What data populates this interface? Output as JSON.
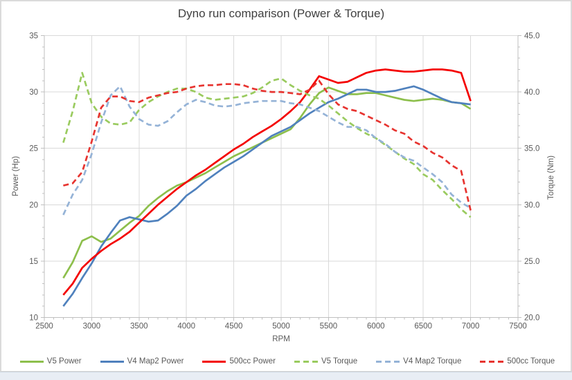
{
  "frame": {
    "background": "#ffffff",
    "border_color": "#dadada",
    "bottom_strip_color": "#e8edf4"
  },
  "title": {
    "text": "Dyno run comparison (Power & Torque)",
    "color": "#404040"
  },
  "axes": {
    "gridline_color": "#d9d9d9",
    "axis_line_color": "#bfbfbf",
    "tick_color": "#bfbfbf",
    "label_color": "#595959",
    "x": {
      "title": "RPM",
      "tick_labels": [
        "2500",
        "3000",
        "3500",
        "4000",
        "4500",
        "5000",
        "5500",
        "6000",
        "6500",
        "7000",
        "7500"
      ],
      "minor_step": 100
    },
    "y_left": {
      "title": "Power (Hp)",
      "tick_labels": [
        "10",
        "15",
        "20",
        "25",
        "30",
        "35"
      ],
      "minor_step": 1
    },
    "y_right": {
      "title": "Torque (Nm)",
      "tick_labels": [
        "20.0",
        "25.0",
        "30.0",
        "35.0",
        "40.0",
        "45.0"
      ],
      "minor_step": 1
    }
  },
  "chart_data": {
    "type": "line",
    "title": "Dyno run comparison (Power & Torque)",
    "xlabel": "RPM",
    "ylabel_left": "Power (Hp)",
    "ylabel_right": "Torque (Nm)",
    "x_range": [
      2500,
      7500
    ],
    "y_left_range": [
      10,
      35
    ],
    "y_right_range": [
      20.0,
      45.0
    ],
    "grid": true,
    "legend_position": "bottom",
    "x": [
      2700,
      2800,
      2900,
      3000,
      3100,
      3200,
      3300,
      3400,
      3500,
      3600,
      3700,
      3800,
      3900,
      4000,
      4100,
      4200,
      4300,
      4400,
      4500,
      4600,
      4700,
      4800,
      4900,
      5000,
      5100,
      5200,
      5300,
      5400,
      5500,
      5600,
      5700,
      5800,
      5900,
      6000,
      6100,
      6200,
      6300,
      6400,
      6500,
      6600,
      6700,
      6800,
      6900,
      7000
    ],
    "series": [
      {
        "name": "V5 Power",
        "axis": "left",
        "style": "solid",
        "color": "#8dbf4c",
        "values": [
          13.5,
          14.9,
          16.8,
          17.2,
          16.7,
          17.0,
          17.7,
          18.4,
          19.0,
          19.9,
          20.6,
          21.2,
          21.7,
          22.0,
          22.4,
          22.8,
          23.3,
          23.8,
          24.3,
          24.7,
          25.1,
          25.5,
          25.9,
          26.3,
          26.7,
          27.7,
          28.9,
          29.9,
          30.4,
          30.1,
          29.8,
          29.8,
          29.9,
          29.9,
          29.7,
          29.5,
          29.3,
          29.2,
          29.3,
          29.4,
          29.3,
          29.1,
          29.0,
          28.5
        ]
      },
      {
        "name": "V4 Map2 Power",
        "axis": "left",
        "style": "solid",
        "color": "#4f81bd",
        "values": [
          11.0,
          12.1,
          13.5,
          14.8,
          16.3,
          17.5,
          18.6,
          18.9,
          18.7,
          18.5,
          18.6,
          19.2,
          19.9,
          20.8,
          21.4,
          22.1,
          22.7,
          23.3,
          23.8,
          24.3,
          24.9,
          25.5,
          26.1,
          26.5,
          26.9,
          27.5,
          28.1,
          28.6,
          29.1,
          29.4,
          29.8,
          30.2,
          30.2,
          30.0,
          30.0,
          30.1,
          30.3,
          30.5,
          30.2,
          29.8,
          29.4,
          29.1,
          29.0,
          28.9
        ]
      },
      {
        "name": "500cc Power",
        "axis": "left",
        "style": "solid",
        "color": "#f40000",
        "values": [
          12.0,
          13.0,
          14.4,
          15.2,
          15.9,
          16.5,
          17.0,
          17.6,
          18.4,
          19.2,
          20.0,
          20.7,
          21.4,
          22.0,
          22.6,
          23.1,
          23.7,
          24.3,
          24.9,
          25.4,
          26.0,
          26.5,
          27.0,
          27.6,
          28.3,
          29.1,
          30.2,
          31.4,
          31.1,
          30.8,
          30.9,
          31.3,
          31.7,
          31.9,
          32.0,
          31.9,
          31.8,
          31.8,
          31.9,
          32.0,
          32.0,
          31.9,
          31.7,
          29.2
        ]
      },
      {
        "name": "V5 Torque",
        "axis": "right",
        "style": "dashed",
        "color": "#9acb5f",
        "values": [
          35.5,
          38.3,
          41.7,
          39.0,
          37.8,
          37.2,
          37.1,
          37.3,
          38.4,
          39.1,
          39.6,
          40.0,
          40.3,
          40.3,
          40.0,
          39.5,
          39.3,
          39.4,
          39.5,
          39.6,
          39.9,
          40.4,
          41.0,
          41.2,
          40.6,
          40.1,
          39.7,
          39.4,
          38.8,
          38.1,
          37.4,
          36.8,
          36.3,
          35.9,
          35.3,
          34.7,
          34.1,
          33.6,
          32.7,
          32.2,
          31.3,
          30.5,
          29.6,
          28.9
        ]
      },
      {
        "name": "V4 Map2 Torque",
        "axis": "right",
        "style": "dashed",
        "color": "#95b3d7",
        "values": [
          29.1,
          30.9,
          32.2,
          34.5,
          37.3,
          39.7,
          40.5,
          38.7,
          37.6,
          37.1,
          37.0,
          37.4,
          38.2,
          38.9,
          39.3,
          39.1,
          38.8,
          38.7,
          38.8,
          39.0,
          39.1,
          39.2,
          39.2,
          39.2,
          39.0,
          38.9,
          38.6,
          38.3,
          37.8,
          37.3,
          36.9,
          36.9,
          36.6,
          35.9,
          35.4,
          34.7,
          34.2,
          33.9,
          33.3,
          32.7,
          32.0,
          30.9,
          30.2,
          29.7
        ]
      },
      {
        "name": "500cc Torque",
        "axis": "right",
        "style": "dashed",
        "color": "#e73430",
        "values": [
          31.7,
          31.9,
          32.9,
          35.6,
          38.6,
          39.6,
          39.6,
          39.2,
          39.1,
          39.5,
          39.7,
          39.9,
          40.0,
          40.3,
          40.5,
          40.6,
          40.6,
          40.7,
          40.7,
          40.6,
          40.3,
          40.1,
          40.0,
          40.0,
          39.9,
          39.8,
          40.2,
          41.0,
          39.8,
          38.9,
          38.5,
          38.3,
          37.9,
          37.5,
          37.1,
          36.6,
          36.3,
          35.6,
          35.2,
          34.6,
          34.2,
          33.5,
          33.0,
          29.5
        ]
      }
    ]
  }
}
